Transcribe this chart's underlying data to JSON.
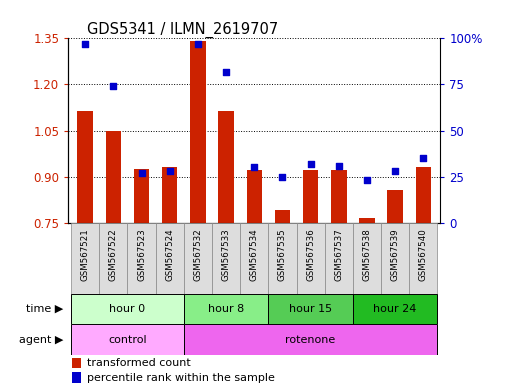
{
  "title": "GDS5341 / ILMN_2619707",
  "samples": [
    "GSM567521",
    "GSM567522",
    "GSM567523",
    "GSM567524",
    "GSM567532",
    "GSM567533",
    "GSM567534",
    "GSM567535",
    "GSM567536",
    "GSM567537",
    "GSM567538",
    "GSM567539",
    "GSM567540"
  ],
  "transformed_count": [
    1.115,
    1.05,
    0.925,
    0.93,
    1.34,
    1.115,
    0.92,
    0.79,
    0.92,
    0.92,
    0.765,
    0.855,
    0.93
  ],
  "percentile_rank": [
    97,
    74,
    27,
    28,
    97,
    82,
    30,
    25,
    32,
    31,
    23,
    28,
    35
  ],
  "ylim_left": [
    0.75,
    1.35
  ],
  "ylim_right": [
    0,
    100
  ],
  "yticks_left": [
    0.75,
    0.9,
    1.05,
    1.2,
    1.35
  ],
  "yticks_right": [
    0,
    25,
    50,
    75,
    100
  ],
  "ytick_labels_right": [
    "0",
    "25",
    "50",
    "75",
    "100%"
  ],
  "bar_color": "#CC2200",
  "dot_color": "#0000CC",
  "bar_bottom": 0.75,
  "time_groups": [
    {
      "label": "hour 0",
      "start": 0,
      "end": 4,
      "color": "#ccffcc"
    },
    {
      "label": "hour 8",
      "start": 4,
      "end": 7,
      "color": "#88ee88"
    },
    {
      "label": "hour 15",
      "start": 7,
      "end": 10,
      "color": "#55cc55"
    },
    {
      "label": "hour 24",
      "start": 10,
      "end": 13,
      "color": "#22bb22"
    }
  ],
  "agent_groups": [
    {
      "label": "control",
      "start": 0,
      "end": 4,
      "color": "#ffaaff"
    },
    {
      "label": "rotenone",
      "start": 4,
      "end": 13,
      "color": "#ee66ee"
    }
  ],
  "legend_bar_label": "transformed count",
  "legend_dot_label": "percentile rank within the sample",
  "time_label": "time",
  "agent_label": "agent",
  "grid_color": "black",
  "tick_label_color_left": "#CC2200",
  "tick_label_color_right": "#0000CC",
  "sample_box_color": "#dddddd",
  "sample_box_edge": "#888888"
}
